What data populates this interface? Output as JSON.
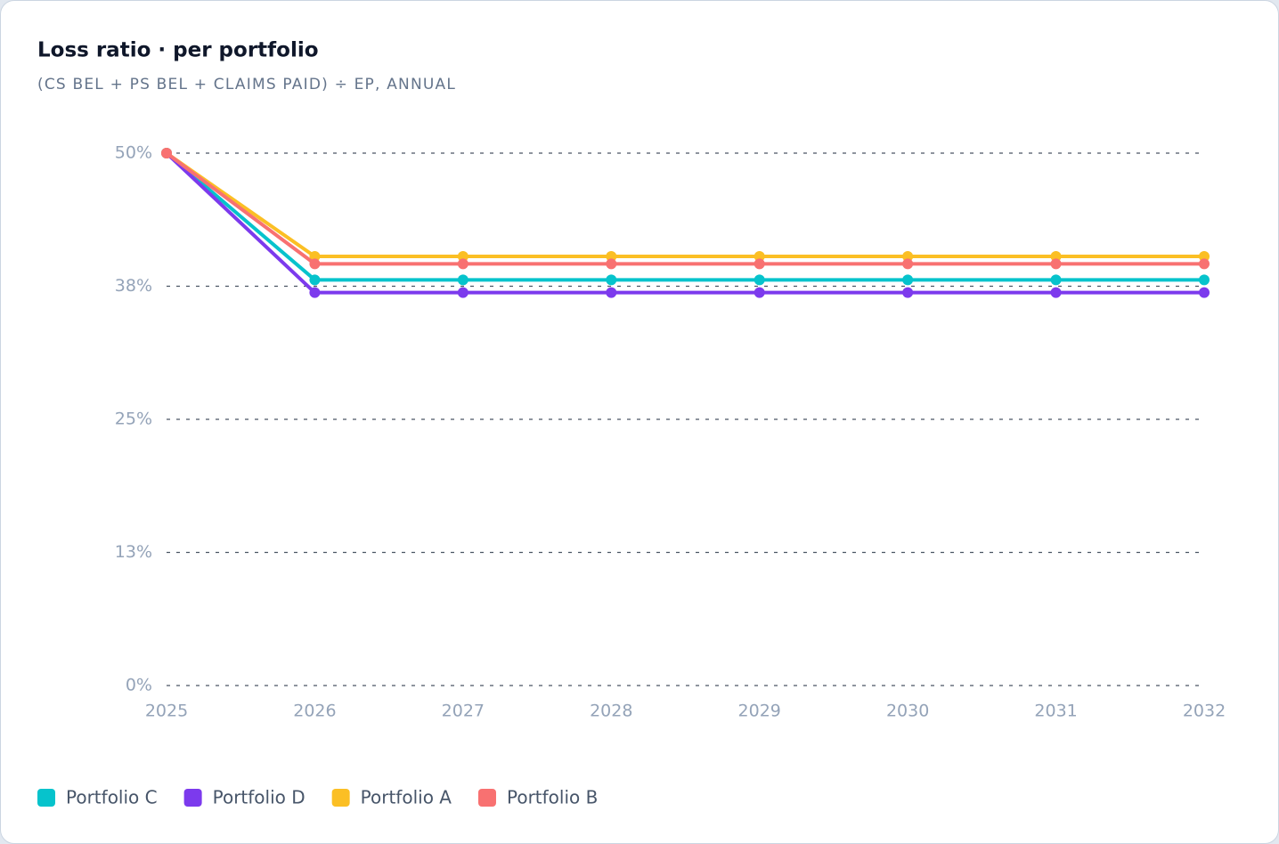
{
  "chart_data": {
    "type": "line",
    "title": "Loss ratio · per portfolio",
    "subtitle": "(CS BEL + PS BEL + CLAIMS PAID) ÷ EP, ANNUAL",
    "categories": [
      "2025",
      "2026",
      "2027",
      "2028",
      "2029",
      "2030",
      "2031",
      "2032"
    ],
    "series": [
      {
        "name": "Portfolio C",
        "color": "#06c3cc",
        "values": [
          50,
          38.1,
          38.1,
          38.1,
          38.1,
          38.1,
          38.1,
          38.1
        ]
      },
      {
        "name": "Portfolio D",
        "color": "#7c3aed",
        "values": [
          50,
          36.9,
          36.9,
          36.9,
          36.9,
          36.9,
          36.9,
          36.9
        ]
      },
      {
        "name": "Portfolio A",
        "color": "#fbbf24",
        "values": [
          50,
          40.3,
          40.3,
          40.3,
          40.3,
          40.3,
          40.3,
          40.3
        ]
      },
      {
        "name": "Portfolio B",
        "color": "#f87171",
        "values": [
          50,
          39.6,
          39.6,
          39.6,
          39.6,
          39.6,
          39.6,
          39.6
        ]
      }
    ],
    "ylim": [
      0,
      50
    ],
    "yticks": [
      {
        "value": 0,
        "label": "0%"
      },
      {
        "value": 12.5,
        "label": "13%"
      },
      {
        "value": 25,
        "label": "25%"
      },
      {
        "value": 37.5,
        "label": "38%"
      },
      {
        "value": 50,
        "label": "50%"
      }
    ],
    "grid": true,
    "legend": "bottom-left"
  }
}
